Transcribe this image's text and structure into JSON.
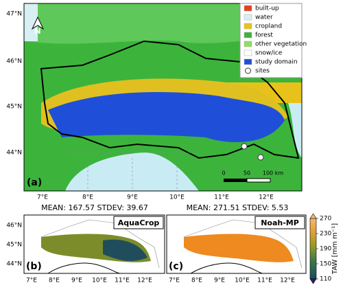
{
  "panel_a": {
    "label": "(a)",
    "north": "N",
    "lat_labels": [
      "47°N",
      "46°N",
      "45°N",
      "44°N"
    ],
    "lon_labels": [
      "7°E",
      "8°E",
      "9°E",
      "10°E",
      "11°E",
      "12°E"
    ],
    "legend": [
      "built-up",
      "water",
      "cropland",
      "forest",
      "other vegetation",
      "snow/ice",
      "study domain",
      "sites"
    ],
    "scale_labels": [
      "0",
      "50",
      "100 km"
    ]
  },
  "panel_b": {
    "label": "(b)",
    "model": "AquaCrop",
    "stats": "MEAN: 167.57  STDEV: 39.67",
    "lat_labels": [
      "46°N",
      "45°N",
      "44°N"
    ],
    "lon_labels": [
      "7°E",
      "8°E",
      "9°E",
      "10°E",
      "11°E",
      "12°E"
    ]
  },
  "panel_c": {
    "label": "(c)",
    "model": "Noah-MP",
    "stats": "MEAN: 271.51  STDEV: 5.53",
    "lon_labels": [
      "7°E",
      "8°E",
      "9°E",
      "10°E",
      "11°E",
      "12°E"
    ]
  },
  "colorbar": {
    "label": "TAW [mm m⁻¹]",
    "clim": [
      110,
      270
    ],
    "ticks": [
      110,
      150,
      190,
      230,
      270
    ]
  }
}
